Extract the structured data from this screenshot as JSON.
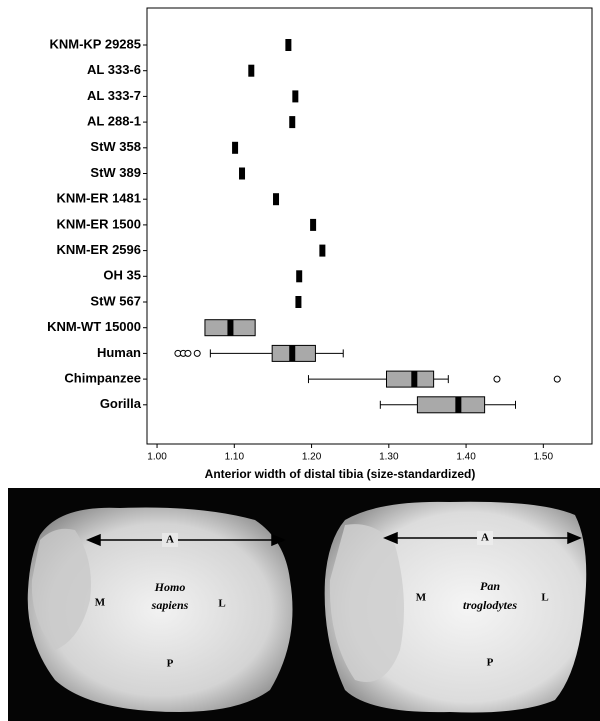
{
  "chart_data": {
    "type": "box",
    "xlabel": "Anterior width of distal tibia (size-standardized)",
    "categories": [
      "KNM-KP 29285",
      "AL 333-6",
      "AL 333-7",
      "AL 288-1",
      "StW 358",
      "StW 389",
      "KNM-ER 1481",
      "KNM-ER 1500",
      "KNM-ER 2596",
      "OH 35",
      "StW 567",
      "KNM-WT 15000",
      "Human",
      "Chimpanzee",
      "Gorilla"
    ],
    "boxes": [
      {
        "value": 1.17
      },
      {
        "value": 1.122
      },
      {
        "value": 1.179
      },
      {
        "value": 1.175
      },
      {
        "value": 1.101
      },
      {
        "value": 1.11
      },
      {
        "value": 1.154
      },
      {
        "value": 1.202
      },
      {
        "value": 1.214
      },
      {
        "value": 1.184
      },
      {
        "value": 1.183
      },
      {
        "q1": 1.062,
        "median": 1.095,
        "q3": 1.127
      },
      {
        "min": 1.069,
        "q1": 1.149,
        "median": 1.175,
        "q3": 1.205,
        "max": 1.241,
        "outliers": [
          1.027,
          1.034,
          1.04,
          1.052
        ]
      },
      {
        "min": 1.196,
        "q1": 1.297,
        "median": 1.333,
        "q3": 1.358,
        "max": 1.377,
        "outliers": [
          1.44,
          1.518
        ]
      },
      {
        "min": 1.289,
        "q1": 1.337,
        "median": 1.39,
        "q3": 1.424,
        "max": 1.464,
        "outliers": []
      }
    ],
    "color": "#a9a9a9",
    "xlim": [
      0.987,
      1.563
    ],
    "xticks": [
      {
        "value": 1.0,
        "label": "1.00"
      },
      {
        "value": 1.1,
        "label": "1.10"
      },
      {
        "value": 1.2,
        "label": "1.20"
      },
      {
        "value": 1.3,
        "label": "1.30"
      },
      {
        "value": 1.4,
        "label": "1.40"
      },
      {
        "value": 1.5,
        "label": "1.50"
      }
    ]
  },
  "photo": {
    "left": {
      "name": [
        "Homo",
        "sapiens"
      ],
      "anterior": "A",
      "medial": "M",
      "lateral": "L",
      "posterior": "P"
    },
    "right": {
      "name": [
        "Pan",
        "troglodytes"
      ],
      "anterior": "A",
      "medial": "M",
      "lateral": "L",
      "posterior": "P"
    }
  }
}
